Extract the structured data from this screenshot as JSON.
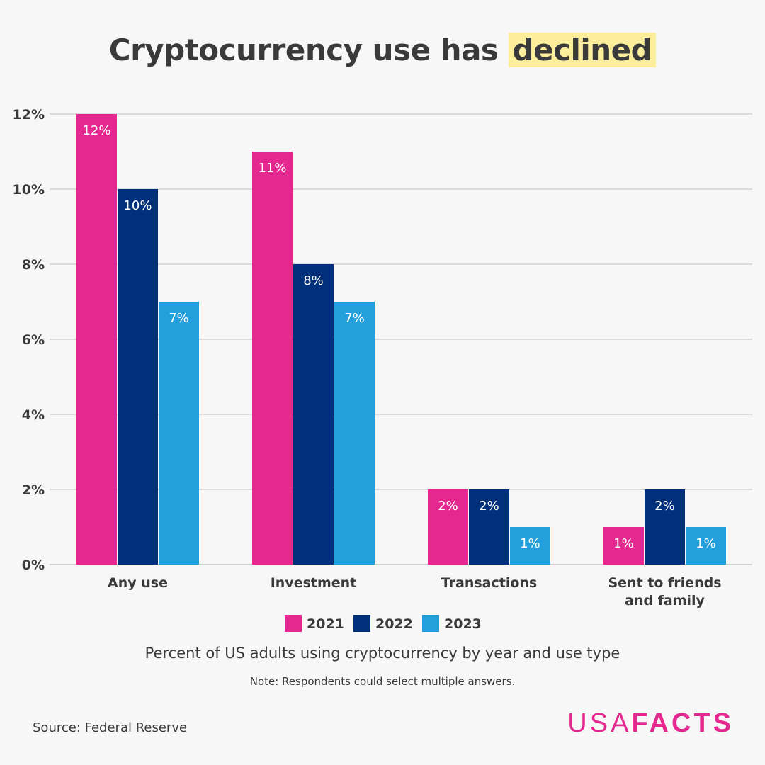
{
  "title": {
    "prefix": "Cryptocurrency use has ",
    "highlight": "declined"
  },
  "subtitle": "Percent of US adults using cryptocurrency by year and use type",
  "note": "Note: Respondents could select multiple answers.",
  "source": "Source: Federal Reserve",
  "logo": {
    "part1": "USA",
    "part2": "FACTS"
  },
  "colors": {
    "2021": "#e5288f",
    "2022": "#00307a",
    "2023": "#23a0dc",
    "highlight": "#fdee9b",
    "text": "#3a3a3a",
    "grid": "#dcdcdc"
  },
  "chart_data": {
    "type": "bar",
    "categories": [
      "Any use",
      "Investment",
      "Transactions",
      "Sent to friends and family"
    ],
    "series": [
      {
        "name": "2021",
        "values": [
          12,
          11,
          2,
          1
        ]
      },
      {
        "name": "2022",
        "values": [
          10,
          8,
          2,
          2
        ]
      },
      {
        "name": "2023",
        "values": [
          7,
          7,
          1,
          1
        ]
      }
    ],
    "data_labels": [
      [
        "12%",
        "11%",
        "2%",
        "1%"
      ],
      [
        "10%",
        "8%",
        "2%",
        "2%"
      ],
      [
        "7%",
        "7%",
        "1%",
        "1%"
      ]
    ],
    "yticks": [
      0,
      2,
      4,
      6,
      8,
      10,
      12
    ],
    "ytick_labels": [
      "0%",
      "2%",
      "4%",
      "6%",
      "8%",
      "10%",
      "12%"
    ],
    "ylim": [
      0,
      12
    ],
    "grid": true,
    "legend_position": "bottom",
    "xlabel": "",
    "ylabel": ""
  }
}
